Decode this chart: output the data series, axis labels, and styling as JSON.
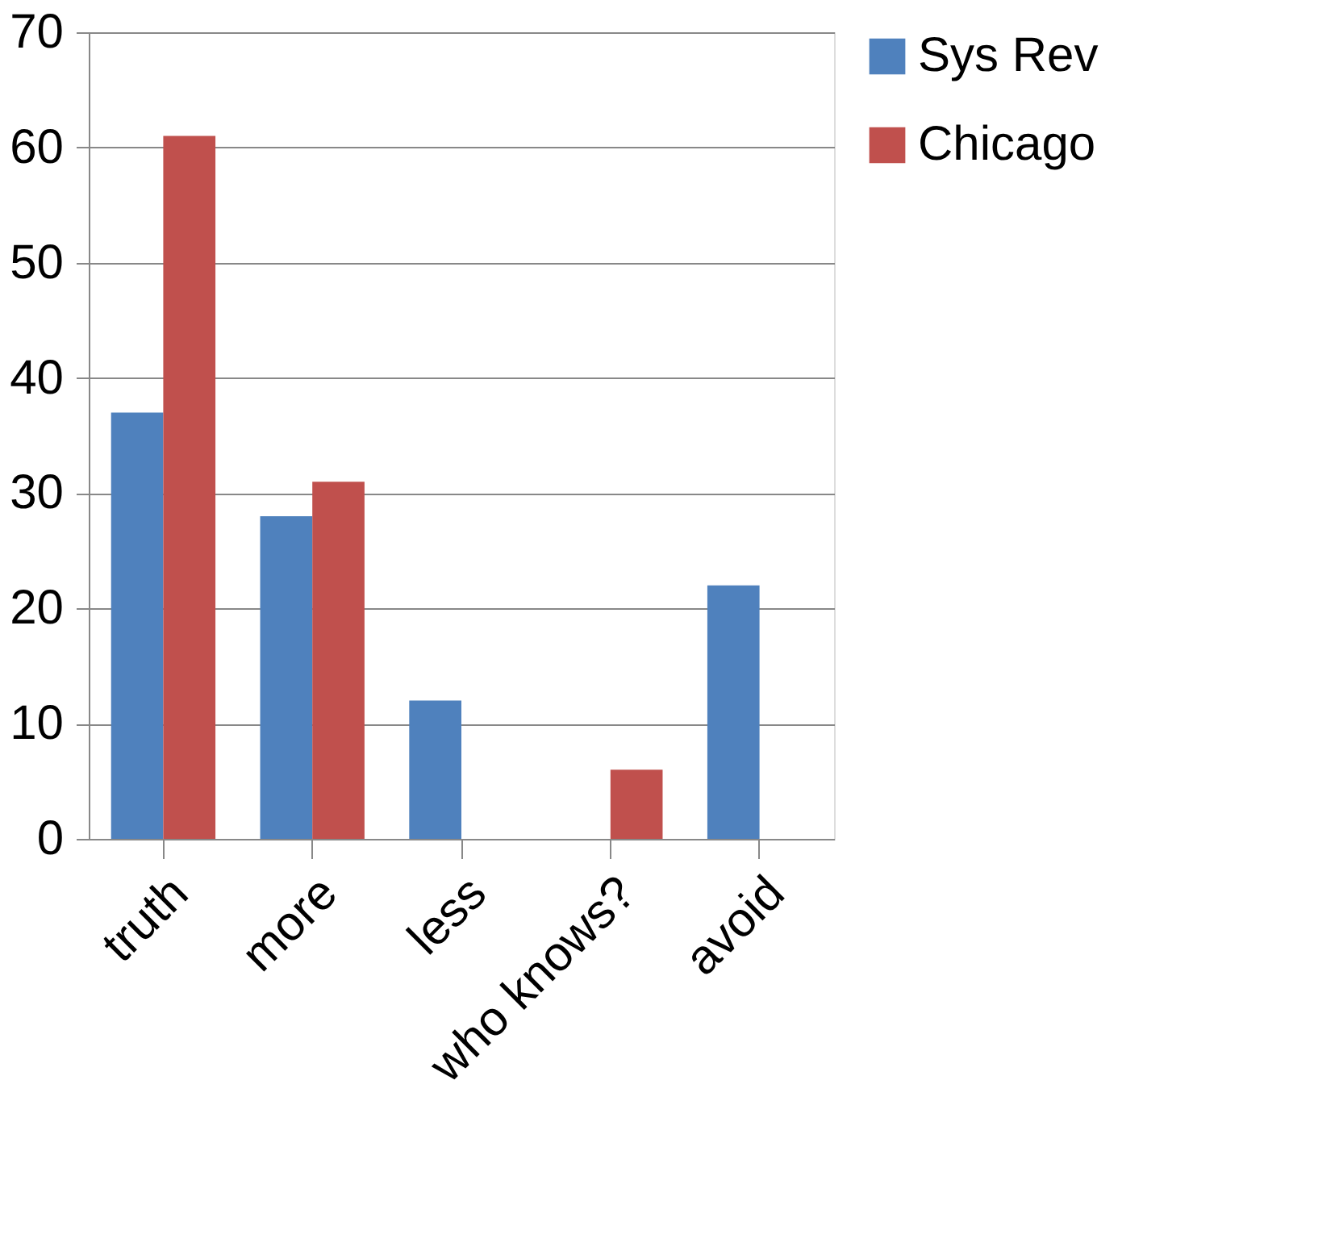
{
  "chart_data": {
    "type": "bar",
    "categories": [
      "truth",
      "more",
      "less",
      "who knows?",
      "avoid"
    ],
    "series": [
      {
        "name": "Sys Rev",
        "color": "#4f81bd",
        "values": [
          37,
          28,
          12,
          null,
          22
        ]
      },
      {
        "name": "Chicago",
        "color": "#c0504d",
        "values": [
          61,
          31,
          null,
          6,
          null
        ]
      }
    ],
    "ylim": [
      0,
      70
    ],
    "yticks": [
      0,
      10,
      20,
      30,
      40,
      50,
      60,
      70
    ],
    "grid": "y",
    "legend": "right"
  }
}
